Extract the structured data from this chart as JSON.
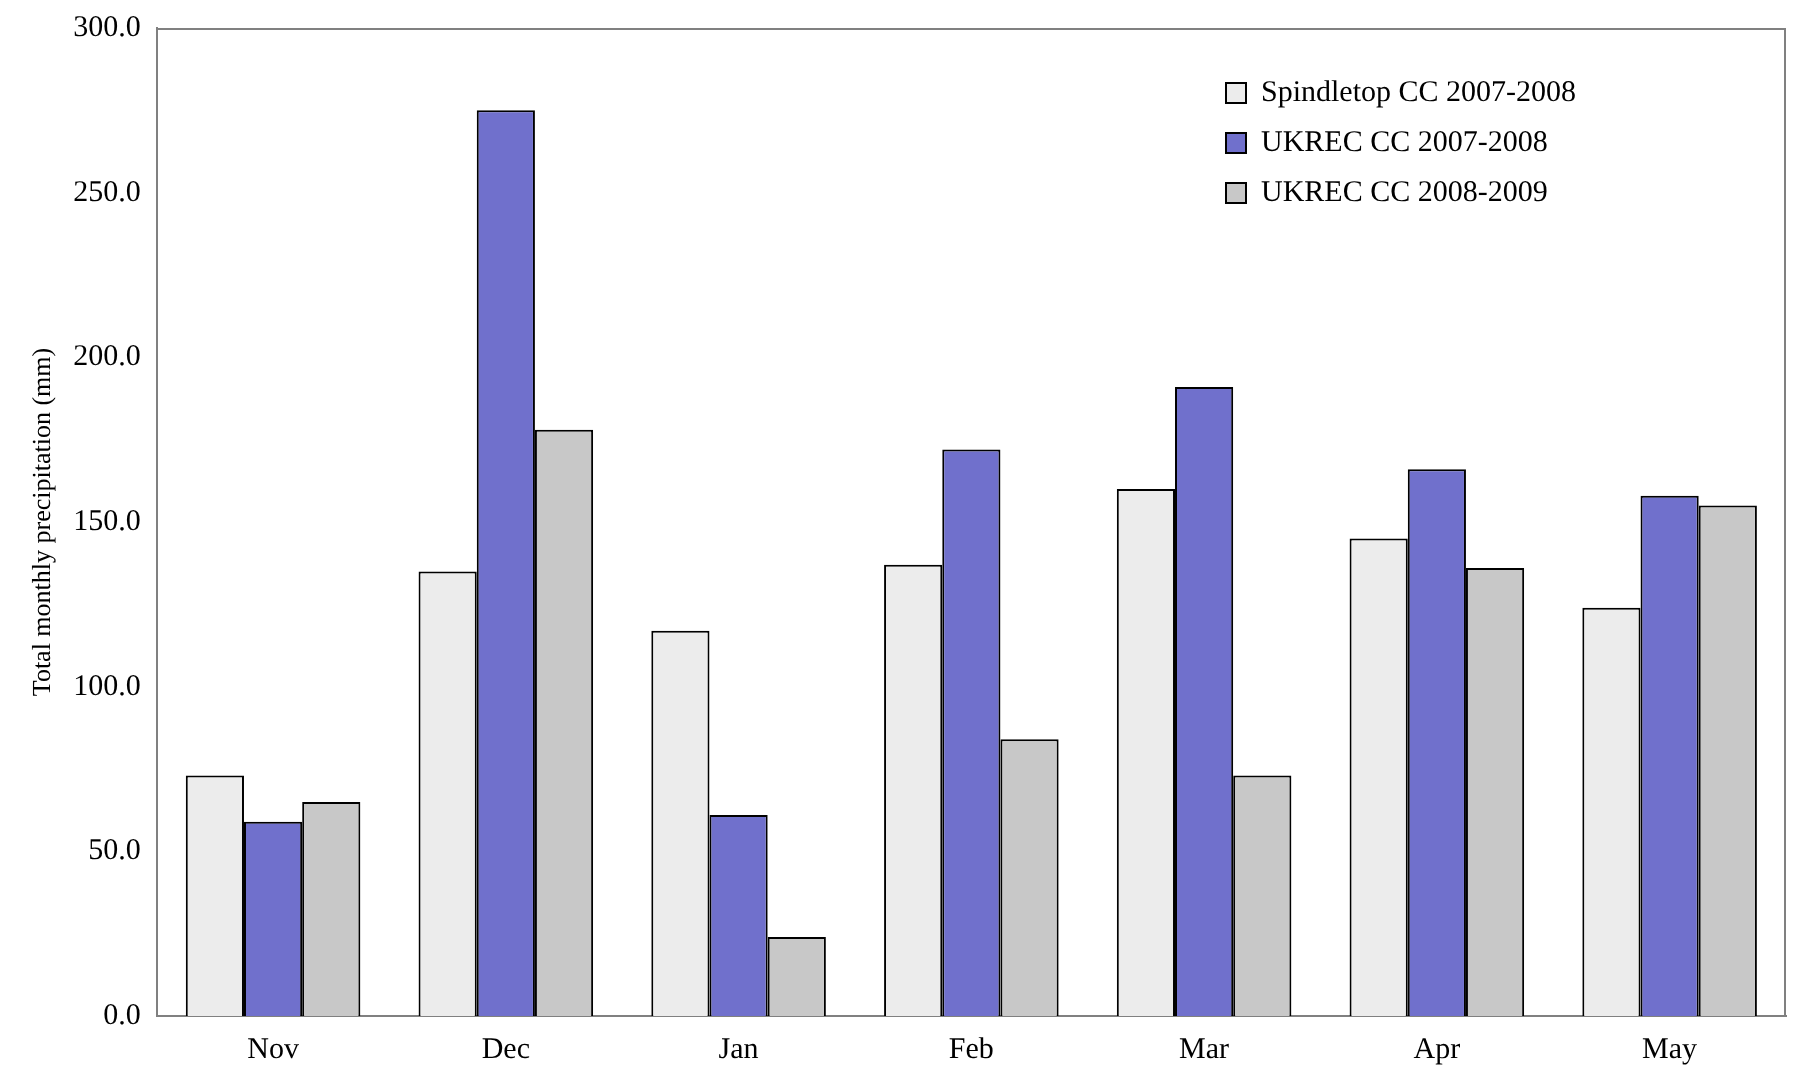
{
  "chart_data": {
    "type": "bar",
    "ylabel": "Total monthly precipitation (mm)",
    "categories": [
      "Nov",
      "Dec",
      "Jan",
      "Feb",
      "Mar",
      "Apr",
      "May"
    ],
    "series": [
      {
        "name": "Spindletop CC 2007-2008",
        "color": "#ececec",
        "values": [
          73,
          135,
          117,
          137,
          160,
          145,
          124
        ]
      },
      {
        "name": "UKREC CC 2007-2008",
        "color": "#7070cc",
        "values": [
          59,
          275,
          61,
          172,
          191,
          166,
          158
        ]
      },
      {
        "name": "UKREC CC 2008-2009",
        "color": "#c8c8c8",
        "values": [
          65,
          178,
          24,
          84,
          73,
          136,
          155
        ]
      }
    ],
    "ylim": [
      0,
      300
    ],
    "yticks": [
      {
        "value": 0,
        "label": "0.0"
      },
      {
        "value": 50,
        "label": "50.0"
      },
      {
        "value": 100,
        "label": "100.0"
      },
      {
        "value": 150,
        "label": "150.0"
      },
      {
        "value": 200,
        "label": "200.0"
      },
      {
        "value": 250,
        "label": "250.0"
      },
      {
        "value": 300,
        "label": "300.0"
      }
    ],
    "legend": "top right",
    "grid": false
  }
}
